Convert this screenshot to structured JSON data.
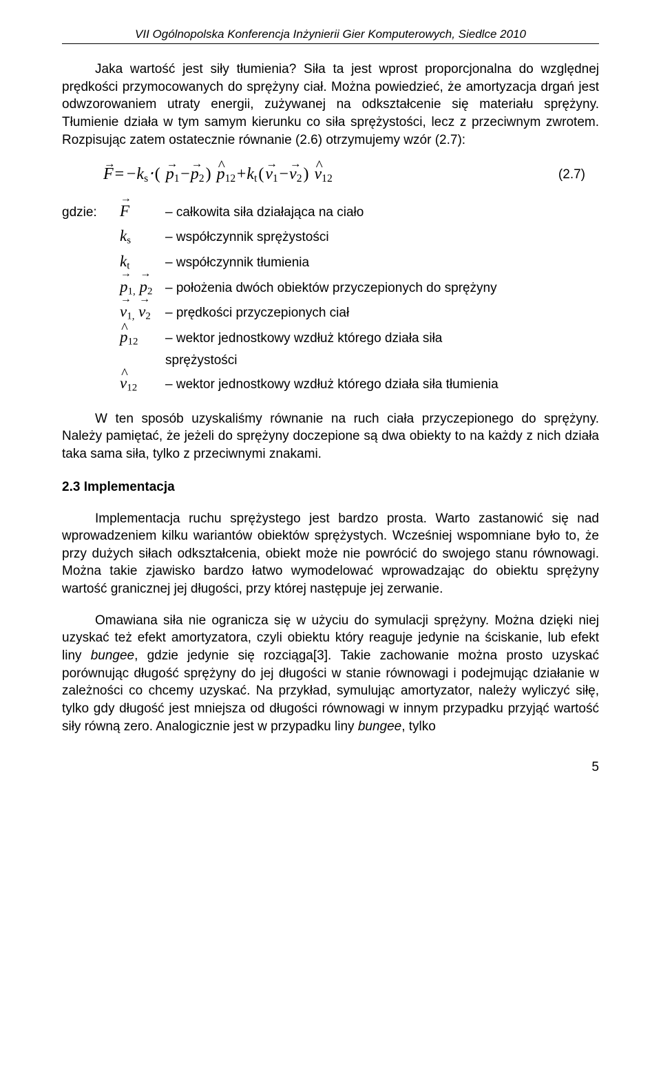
{
  "header": "VII Ogólnopolska Konferencja Inżynierii Gier Komputerowych, Siedlce 2010",
  "para1": "Jaka wartość jest siły tłumienia? Siła ta jest wprost proporcjonalna do względnej prędkości przymocowanych do sprężyny ciał. Można powiedzieć, że amortyzacja drgań jest odwzorowaniem utraty energii, zużywanej na odkształcenie się materiału sprężyny. Tłumienie działa w tym samym kierunku co siła sprężystości, lecz z przeciwnym zwrotem. Rozpisując zatem ostatecznie równanie (2.6) otrzymujemy wzór (2.7):",
  "eqnum": "(2.7)",
  "where_label": "gdzie:",
  "where": {
    "F": "– całkowita siła działająca na ciało",
    "ks": "– współczynnik sprężystości",
    "kt": "– współczynnik tłumienia",
    "p12": "– położenia dwóch obiektów przyczepionych do sprężyny",
    "v12": "– prędkości przyczepionych ciał",
    "phat": "– wektor jednostkowy wzdłuż którego działa siła",
    "phat2": "sprężystości",
    "vhat": "–  wektor jednostkowy wzdłuż którego działa siła tłumienia"
  },
  "para2": "W ten sposób uzyskaliśmy równanie na ruch ciała przyczepionego do sprężyny. Należy pamiętać, że jeżeli do sprężyny doczepione są dwa obiekty to na każdy z nich działa taka sama siła, tylko z przeciwnymi znakami.",
  "heading": "2.3 Implementacja",
  "para3": "Implementacja ruchu sprężystego jest bardzo prosta. Warto zastanowić się nad wprowadzeniem kilku wariantów obiektów sprężystych. Wcześniej wspomniane było to, że przy dużych siłach odkształcenia, obiekt może nie powrócić do swojego stanu równowagi. Można takie zjawisko bardzo łatwo wymodelować wprowadzając do obiektu sprężyny wartość granicznej jej długości,  przy której  następuje jej zerwanie.",
  "para4_a": "Omawiana siła nie ogranicza się w użyciu do symulacji sprężyny. Można dzięki niej uzyskać też efekt amortyzatora, czyli obiektu który reaguje jedynie na ściskanie, lub efekt liny ",
  "para4_i1": "bungee",
  "para4_b": ", gdzie jedynie się rozciąga[3]. Takie zachowanie można prosto uzyskać porównując długość sprężyny do jej długości w stanie równowagi i podejmując działanie w zależności co chcemy uzyskać. Na przykład, symulując amortyzator, należy wyliczyć siłę, tylko gdy długość jest mniejsza od długości równowagi w innym przypadku przyjąć wartość siły równą zero. Analogicznie jest w przypadku liny ",
  "para4_i2": "bungee",
  "para4_c": ", tylko",
  "page_number": "5"
}
